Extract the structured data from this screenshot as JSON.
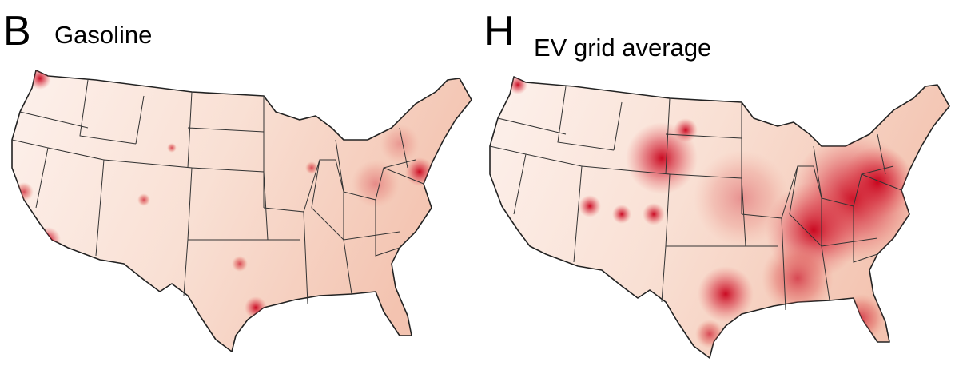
{
  "panels": [
    {
      "letter": "B",
      "title": "Gasoline"
    },
    {
      "letter": "H",
      "title": "EV grid average"
    }
  ]
}
